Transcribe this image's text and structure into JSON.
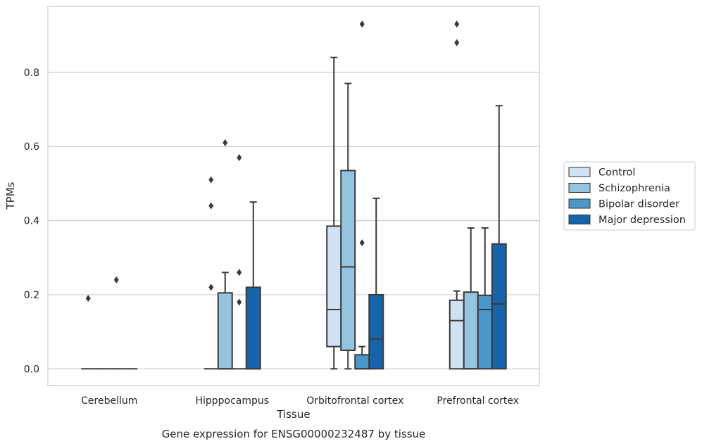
{
  "chart_data": {
    "type": "boxplot",
    "xlabel": "Tissue",
    "ylabel": "TPMs",
    "caption": "Gene expression for ENSG00000232487 by tissue",
    "ylim": [
      -0.045,
      0.978
    ],
    "yticks": [
      0.0,
      0.2,
      0.4,
      0.6,
      0.8
    ],
    "ytick_labels": [
      "0.0",
      "0.2",
      "0.4",
      "0.6",
      "0.8"
    ],
    "grid": "horizontal",
    "legend_position": "right",
    "categories": [
      "Cerebellum",
      "Hipppocampus",
      "Orbitofrontal cortex",
      "Prefrontal cortex"
    ],
    "series": [
      {
        "name": "Control",
        "color": "#d0e1f2",
        "boxes": [
          {
            "whislo": 0.0,
            "q1": 0.0,
            "med": 0.0,
            "q3": 0.0,
            "whishi": 0.0,
            "fliers": [
              0.19
            ]
          },
          {
            "whislo": 0.0,
            "q1": 0.0,
            "med": 0.0,
            "q3": 0.0,
            "whishi": 0.0,
            "fliers": [
              0.22,
              0.44,
              0.51
            ]
          },
          {
            "whislo": 0.0,
            "q1": 0.06,
            "med": 0.16,
            "q3": 0.385,
            "whishi": 0.84,
            "fliers": []
          },
          {
            "whislo": 0.0,
            "q1": 0.0,
            "med": 0.13,
            "q3": 0.185,
            "whishi": 0.21,
            "fliers": [
              0.88,
              0.93
            ]
          }
        ]
      },
      {
        "name": "Schizophrenia",
        "color": "#94c4df",
        "boxes": [
          {
            "whislo": 0.0,
            "q1": 0.0,
            "med": 0.0,
            "q3": 0.0,
            "whishi": 0.0,
            "fliers": []
          },
          {
            "whislo": 0.0,
            "q1": 0.0,
            "med": 0.0,
            "q3": 0.205,
            "whishi": 0.26,
            "fliers": [
              0.61
            ]
          },
          {
            "whislo": 0.0,
            "q1": 0.05,
            "med": 0.275,
            "q3": 0.535,
            "whishi": 0.77,
            "fliers": []
          },
          {
            "whislo": 0.0,
            "q1": 0.0,
            "med": 0.0,
            "q3": 0.207,
            "whishi": 0.38,
            "fliers": []
          }
        ]
      },
      {
        "name": "Bipolar disorder",
        "color": "#4a98c9",
        "boxes": [
          {
            "whislo": 0.0,
            "q1": 0.0,
            "med": 0.0,
            "q3": 0.0,
            "whishi": 0.0,
            "fliers": [
              0.24
            ]
          },
          {
            "whislo": 0.0,
            "q1": 0.0,
            "med": 0.0,
            "q3": 0.0,
            "whishi": 0.0,
            "fliers": [
              0.18,
              0.26,
              0.57
            ]
          },
          {
            "whislo": 0.0,
            "q1": 0.0,
            "med": 0.0,
            "q3": 0.038,
            "whishi": 0.06,
            "fliers": [
              0.34,
              0.93
            ]
          },
          {
            "whislo": 0.0,
            "q1": 0.0,
            "med": 0.16,
            "q3": 0.198,
            "whishi": 0.38,
            "fliers": []
          }
        ]
      },
      {
        "name": "Major depression",
        "color": "#1764ab",
        "boxes": [
          {
            "whislo": 0.0,
            "q1": 0.0,
            "med": 0.0,
            "q3": 0.0,
            "whishi": 0.0,
            "fliers": []
          },
          {
            "whislo": 0.0,
            "q1": 0.0,
            "med": 0.0,
            "q3": 0.22,
            "whishi": 0.45,
            "fliers": []
          },
          {
            "whislo": 0.0,
            "q1": 0.0,
            "med": 0.08,
            "q3": 0.2,
            "whishi": 0.46,
            "fliers": []
          },
          {
            "whislo": 0.0,
            "q1": 0.0,
            "med": 0.175,
            "q3": 0.337,
            "whishi": 0.71,
            "fliers": []
          }
        ]
      }
    ]
  }
}
